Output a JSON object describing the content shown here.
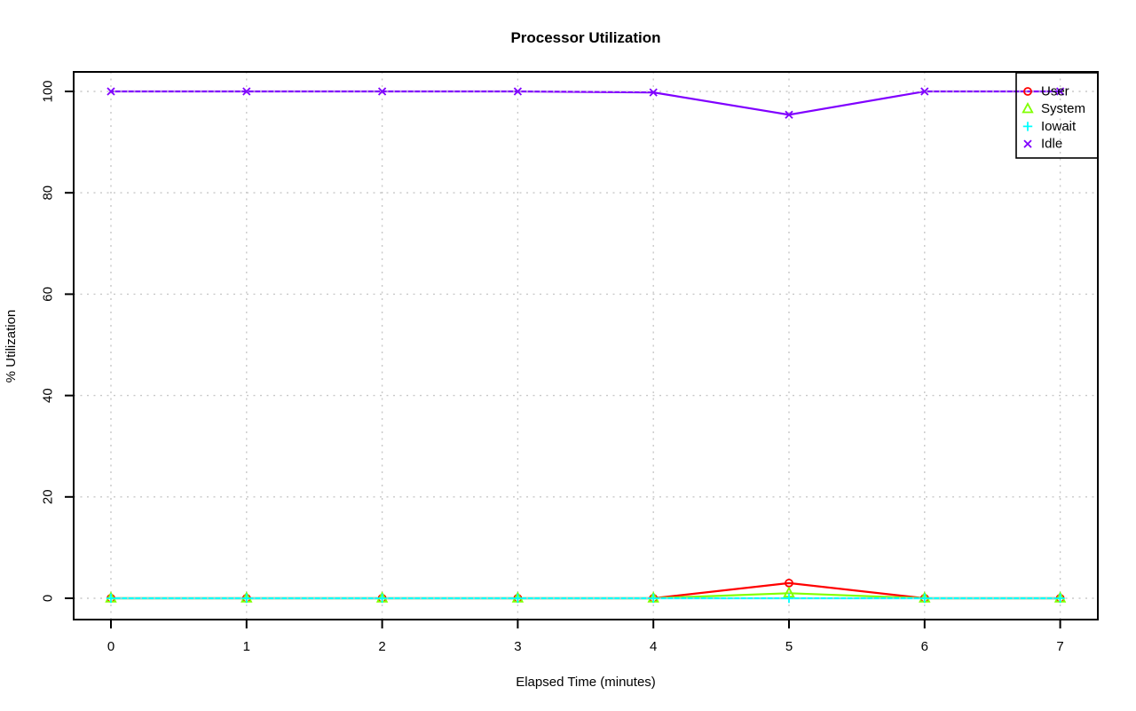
{
  "window": {
    "background_color": "#FFFFFF"
  },
  "chart_data": {
    "type": "line",
    "title": "Processor Utilization",
    "xlabel": "Elapsed Time (minutes)",
    "ylabel": "% Utilization",
    "x": [
      0,
      1,
      2,
      3,
      4,
      5,
      6,
      7
    ],
    "xlim": [
      0,
      7
    ],
    "ylim": [
      0,
      100
    ],
    "xticks": [
      0,
      1,
      2,
      3,
      4,
      5,
      6,
      7
    ],
    "yticks": [
      0,
      20,
      40,
      60,
      80,
      100
    ],
    "grid": {
      "style": "dotted",
      "color": "#C8C8C8",
      "on": true
    },
    "axis_color": "#000000",
    "legend_position": "topright",
    "series": [
      {
        "name": "User",
        "color": "#FF0000",
        "marker": "circle",
        "line_style": "solid",
        "values": [
          0,
          0,
          0,
          0,
          0,
          3,
          0,
          0
        ]
      },
      {
        "name": "System",
        "color": "#80FF00",
        "marker": "triangle",
        "line_style": "solid",
        "values": [
          0,
          0,
          0,
          0,
          0,
          1,
          0,
          0
        ]
      },
      {
        "name": "Iowait",
        "color": "#00FFFF",
        "marker": "plus",
        "line_style": "solid",
        "values": [
          0,
          0,
          0,
          0,
          0,
          0,
          0,
          0
        ]
      },
      {
        "name": "Idle",
        "color": "#8000FF",
        "marker": "x",
        "line_style": "solid",
        "values": [
          100,
          100,
          100,
          100,
          99.8,
          95.4,
          100,
          100
        ]
      }
    ]
  }
}
